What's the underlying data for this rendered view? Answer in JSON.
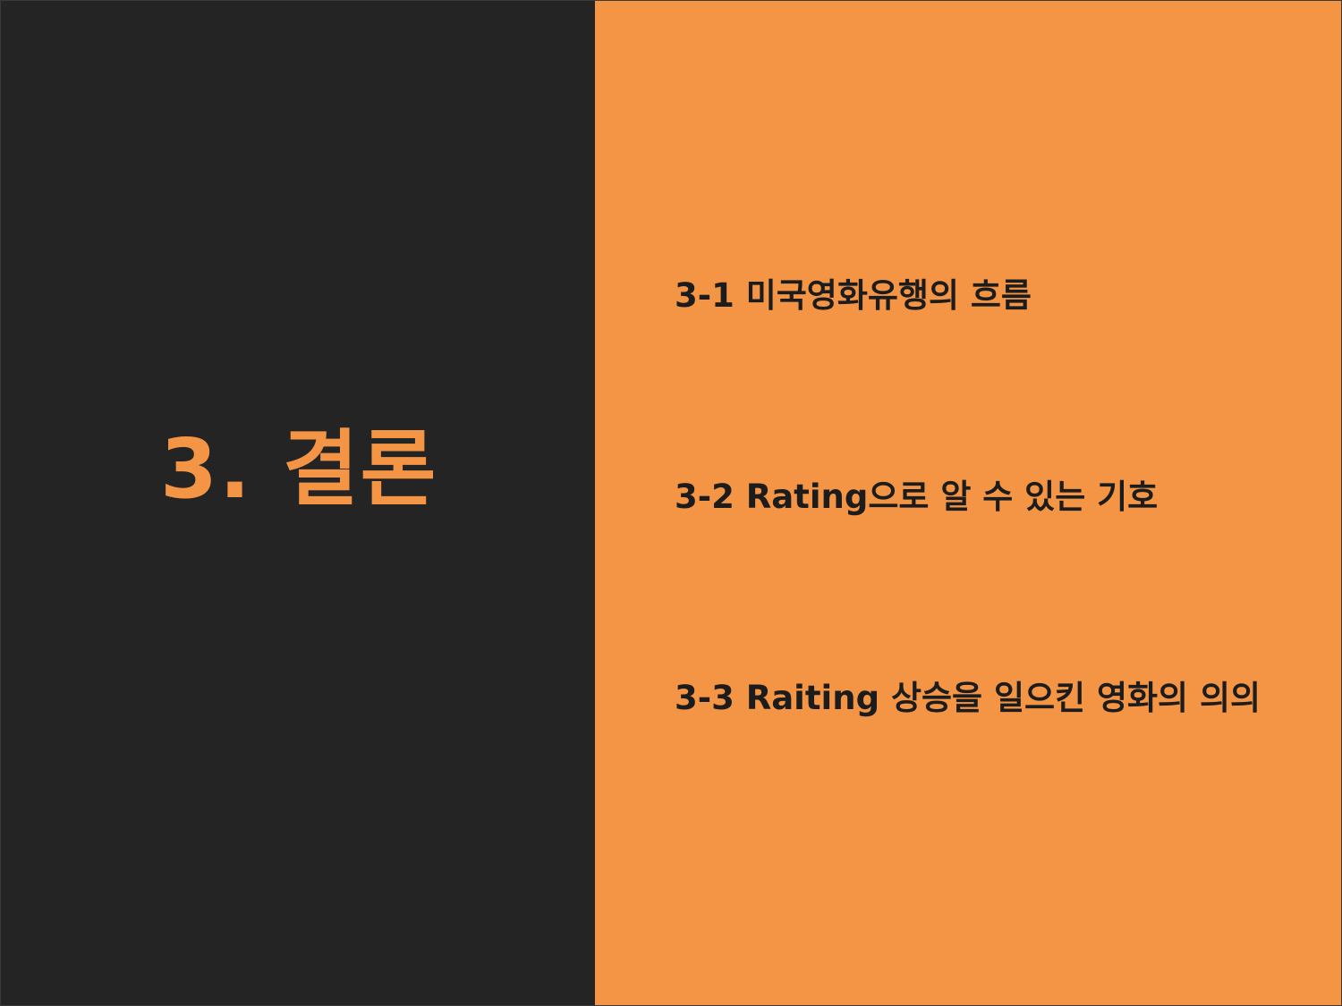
{
  "colors": {
    "left_background": "#242424",
    "right_background": "#f49545",
    "title_text": "#f49545",
    "item_text": "#1c1c1c"
  },
  "title": "3. 결론",
  "items": [
    {
      "label": "3-1 미국영화유행의 흐름"
    },
    {
      "label": "3-2 Rating으로 알 수 있는 기호"
    },
    {
      "label": "3-3 Raiting 상승을 일으킨 영화의 의의"
    }
  ]
}
